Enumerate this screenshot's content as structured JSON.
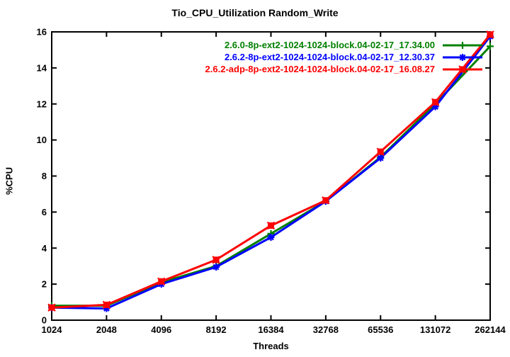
{
  "page": {
    "background": "#ffffff"
  },
  "chart_data": {
    "type": "line",
    "title": "Tio_CPU_Utilization Random_Write",
    "xlabel": "Threads",
    "ylabel": "%CPU",
    "x_scale": "log2-category",
    "categories": [
      "1024",
      "2048",
      "4096",
      "8192",
      "16384",
      "32768",
      "65536",
      "131072",
      "262144"
    ],
    "ylim": [
      0,
      16
    ],
    "ytick_step": 2,
    "grid": false,
    "legend_position": "top-right-inside",
    "axis_color": "#000000",
    "series": [
      {
        "name": "2.6.0-8p-ext2-1024-1024-block.04-02-17_17.34.00",
        "color": "#008000",
        "marker": "plus",
        "values": [
          0.8,
          0.8,
          2.1,
          3.0,
          4.8,
          6.6,
          9.05,
          12.0,
          15.2
        ]
      },
      {
        "name": "2.6.2-8p-ext2-1024-1024-block.04-02-17_12.30.37",
        "color": "#0000ff",
        "marker": "asterisk",
        "values": [
          0.7,
          0.65,
          2.0,
          2.95,
          4.6,
          6.6,
          9.0,
          11.85,
          15.75
        ]
      },
      {
        "name": "2.6.2-adp-8p-ext2-1024-1024-block.04-02-17_16.08.27",
        "color": "#ff0000",
        "marker": "filled-square",
        "values": [
          0.7,
          0.85,
          2.15,
          3.35,
          5.25,
          6.65,
          9.35,
          12.1,
          15.85
        ]
      }
    ]
  }
}
